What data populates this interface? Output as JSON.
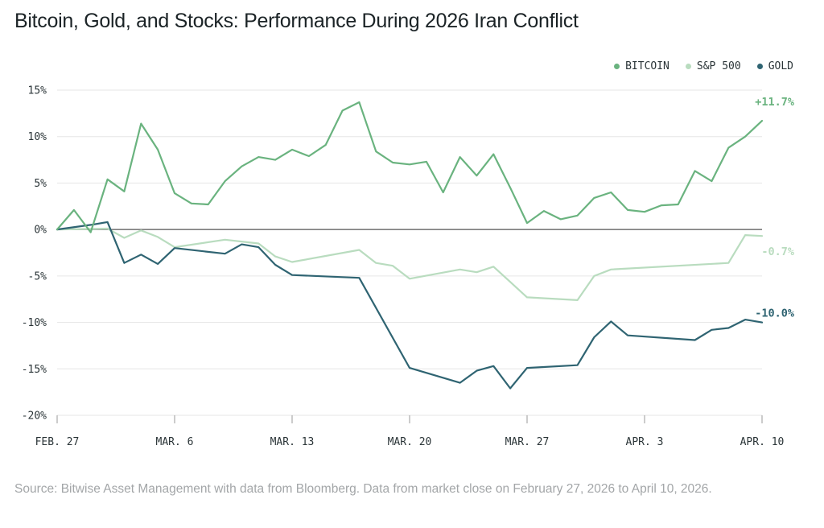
{
  "title": "Bitcoin, Gold, and Stocks: Performance During 2026 Iran Conflict",
  "source": "Source: Bitwise Asset Management with data from Bloomberg. Data from market close on February 27, 2026 to April 10, 2026.",
  "colors": {
    "bitcoin": "#6ab37f",
    "sp500": "#b9dcbf",
    "gold": "#2f6472",
    "zero_line": "#555555",
    "grid": "#e6e6e6",
    "axis_text": "#2b3538"
  },
  "legend": [
    {
      "label": "BITCOIN",
      "color": "#6ab37f"
    },
    {
      "label": "S&P 500",
      "color": "#b9dcbf"
    },
    {
      "label": "GOLD",
      "color": "#2f6472"
    }
  ],
  "chart_data": {
    "type": "line",
    "title": "Bitcoin, Gold, and Stocks: Performance During 2026 Iran Conflict",
    "x_ticks": [
      {
        "label": "FEB. 27",
        "day": 0
      },
      {
        "label": "MAR. 6",
        "day": 7
      },
      {
        "label": "MAR. 13",
        "day": 14
      },
      {
        "label": "MAR. 20",
        "day": 21
      },
      {
        "label": "MAR. 27",
        "day": 28
      },
      {
        "label": "APR. 3",
        "day": 35
      },
      {
        "label": "APR. 10",
        "day": 42
      }
    ],
    "y_ticks": [
      "15%",
      "10%",
      "5%",
      "0%",
      "-5%",
      "-10%",
      "-15%",
      "-20%"
    ],
    "y_tick_values": [
      15,
      10,
      5,
      0,
      -5,
      -10,
      -15,
      -20
    ],
    "ylim": [
      -20,
      15
    ],
    "xlim": [
      0,
      42
    ],
    "grid": true,
    "legend_position": "top-right",
    "series": [
      {
        "name": "BITCOIN",
        "color": "#6ab37f",
        "end_label": "+11.7%",
        "x": [
          0,
          1,
          2,
          3,
          4,
          5,
          6,
          7,
          8,
          9,
          10,
          11,
          12,
          13,
          14,
          15,
          16,
          17,
          18,
          19,
          20,
          21,
          22,
          23,
          24,
          25,
          26,
          27,
          28,
          29,
          30,
          31,
          32,
          33,
          34,
          35,
          36,
          37,
          38,
          39,
          40,
          41,
          42
        ],
        "values": [
          0,
          2.1,
          -0.3,
          5.4,
          4.1,
          11.4,
          8.6,
          3.9,
          2.8,
          2.7,
          5.2,
          6.8,
          7.8,
          7.5,
          8.6,
          7.9,
          9.1,
          12.8,
          13.7,
          8.4,
          7.2,
          7.0,
          7.3,
          4.0,
          7.8,
          5.8,
          8.1,
          4.5,
          0.7,
          2.0,
          1.1,
          1.5,
          3.4,
          4.0,
          2.1,
          1.9,
          2.6,
          2.7,
          6.3,
          5.2,
          8.8,
          10.0,
          11.7
        ]
      },
      {
        "name": "S&P 500",
        "color": "#b9dcbf",
        "end_label": "-0.7%",
        "x": [
          0,
          3,
          4,
          5,
          6,
          7,
          10,
          12,
          13,
          14,
          18,
          19,
          20,
          21,
          24,
          25,
          26,
          28,
          31,
          32,
          33,
          40,
          41,
          42
        ],
        "values": [
          0,
          0.1,
          -0.9,
          -0.1,
          -0.8,
          -1.9,
          -1.1,
          -1.5,
          -2.9,
          -3.5,
          -2.2,
          -3.6,
          -3.9,
          -5.3,
          -4.3,
          -4.6,
          -4.0,
          -7.3,
          -7.6,
          -5.0,
          -4.3,
          -3.6,
          -0.6,
          -0.7
        ]
      },
      {
        "name": "GOLD",
        "color": "#2f6472",
        "end_label": "-10.0%",
        "x": [
          0,
          2,
          3,
          4,
          5,
          6,
          7,
          10,
          11,
          12,
          13,
          14,
          18,
          21,
          24,
          25,
          26,
          27,
          28,
          31,
          32,
          33,
          34,
          38,
          39,
          40,
          41,
          42
        ],
        "values": [
          0,
          0.5,
          0.8,
          -3.6,
          -2.7,
          -3.7,
          -2.0,
          -2.6,
          -1.6,
          -1.9,
          -3.8,
          -4.9,
          -5.2,
          -14.9,
          -16.5,
          -15.2,
          -14.7,
          -17.1,
          -14.9,
          -14.6,
          -11.6,
          -9.9,
          -11.4,
          -11.9,
          -10.8,
          -10.6,
          -9.7,
          -10.0
        ]
      }
    ]
  }
}
